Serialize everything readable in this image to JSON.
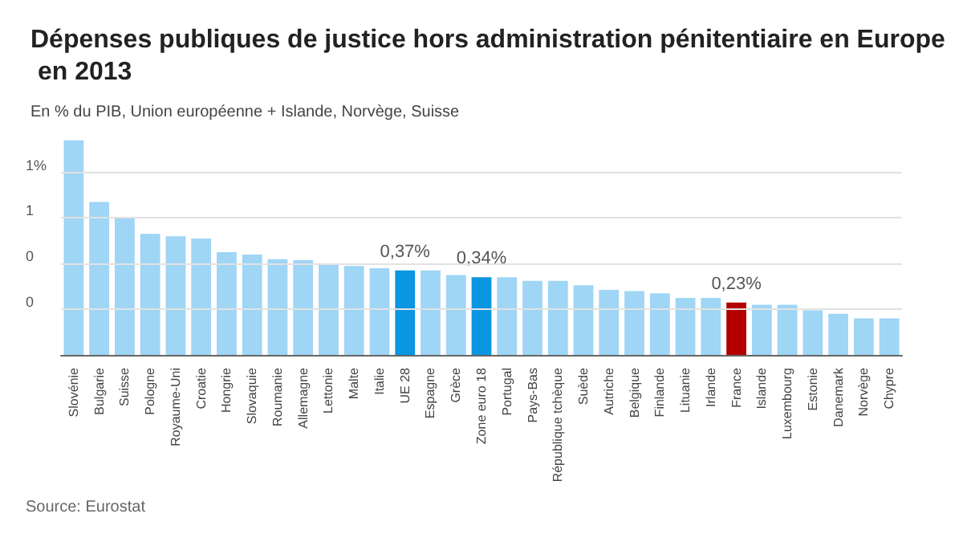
{
  "chart_data": {
    "type": "bar",
    "title": "Dépenses publiques de justice hors administration pénitentiaire en Europe en 2013",
    "subtitle": "En % du PIB, Union européenne + Islande, Norvège, Suisse",
    "annotations": [
      "Source: Eurostat"
    ],
    "categories": [
      "Slovénie",
      "Bulgarie",
      "Suisse",
      "Pologne",
      "Royaume-Uni",
      "Croatie",
      "Hongrie",
      "Slovaquie",
      "Roumanie",
      "Allemagne",
      "Lettonie",
      "Malte",
      "Italie",
      "UE 28",
      "Espagne",
      "Grèce",
      "Zone euro 18",
      "Portugal",
      "Pays-Bas",
      "République tchèque",
      "Suède",
      "Autriche",
      "Belgique",
      "Finlande",
      "Lituanie",
      "Irlande",
      "France",
      "Islande",
      "Luxembourg",
      "Estonie",
      "Danemark",
      "Norvège",
      "Chypre"
    ],
    "values": [
      0.94,
      0.67,
      0.6,
      0.53,
      0.52,
      0.51,
      0.45,
      0.44,
      0.42,
      0.415,
      0.4,
      0.39,
      0.38,
      0.37,
      0.37,
      0.35,
      0.34,
      0.34,
      0.325,
      0.325,
      0.305,
      0.285,
      0.28,
      0.27,
      0.25,
      0.25,
      0.23,
      0.22,
      0.22,
      0.195,
      0.18,
      0.16,
      0.16
    ],
    "colors": [
      "#9fd5f5",
      "#9fd5f5",
      "#9fd5f5",
      "#9fd5f5",
      "#9fd5f5",
      "#9fd5f5",
      "#9fd5f5",
      "#9fd5f5",
      "#9fd5f5",
      "#9fd5f5",
      "#9fd5f5",
      "#9fd5f5",
      "#9fd5f5",
      "#0a96e0",
      "#9fd5f5",
      "#9fd5f5",
      "#0a96e0",
      "#9fd5f5",
      "#9fd5f5",
      "#9fd5f5",
      "#9fd5f5",
      "#9fd5f5",
      "#9fd5f5",
      "#9fd5f5",
      "#9fd5f5",
      "#9fd5f5",
      "#b30000",
      "#9fd5f5",
      "#9fd5f5",
      "#9fd5f5",
      "#9fd5f5",
      "#9fd5f5",
      "#9fd5f5"
    ],
    "value_labels": [
      null,
      null,
      null,
      null,
      null,
      null,
      null,
      null,
      null,
      null,
      null,
      null,
      null,
      "0,37%",
      null,
      null,
      "0,34%",
      null,
      null,
      null,
      null,
      null,
      null,
      null,
      null,
      null,
      "0,23%",
      null,
      null,
      null,
      null,
      null,
      null
    ],
    "ylim": [
      0,
      0.95
    ],
    "yticks": [
      {
        "value": 0.2,
        "label": "0"
      },
      {
        "value": 0.4,
        "label": "0"
      },
      {
        "value": 0.6,
        "label": "1"
      },
      {
        "value": 0.8,
        "label": "1%"
      }
    ],
    "grid": "y"
  }
}
